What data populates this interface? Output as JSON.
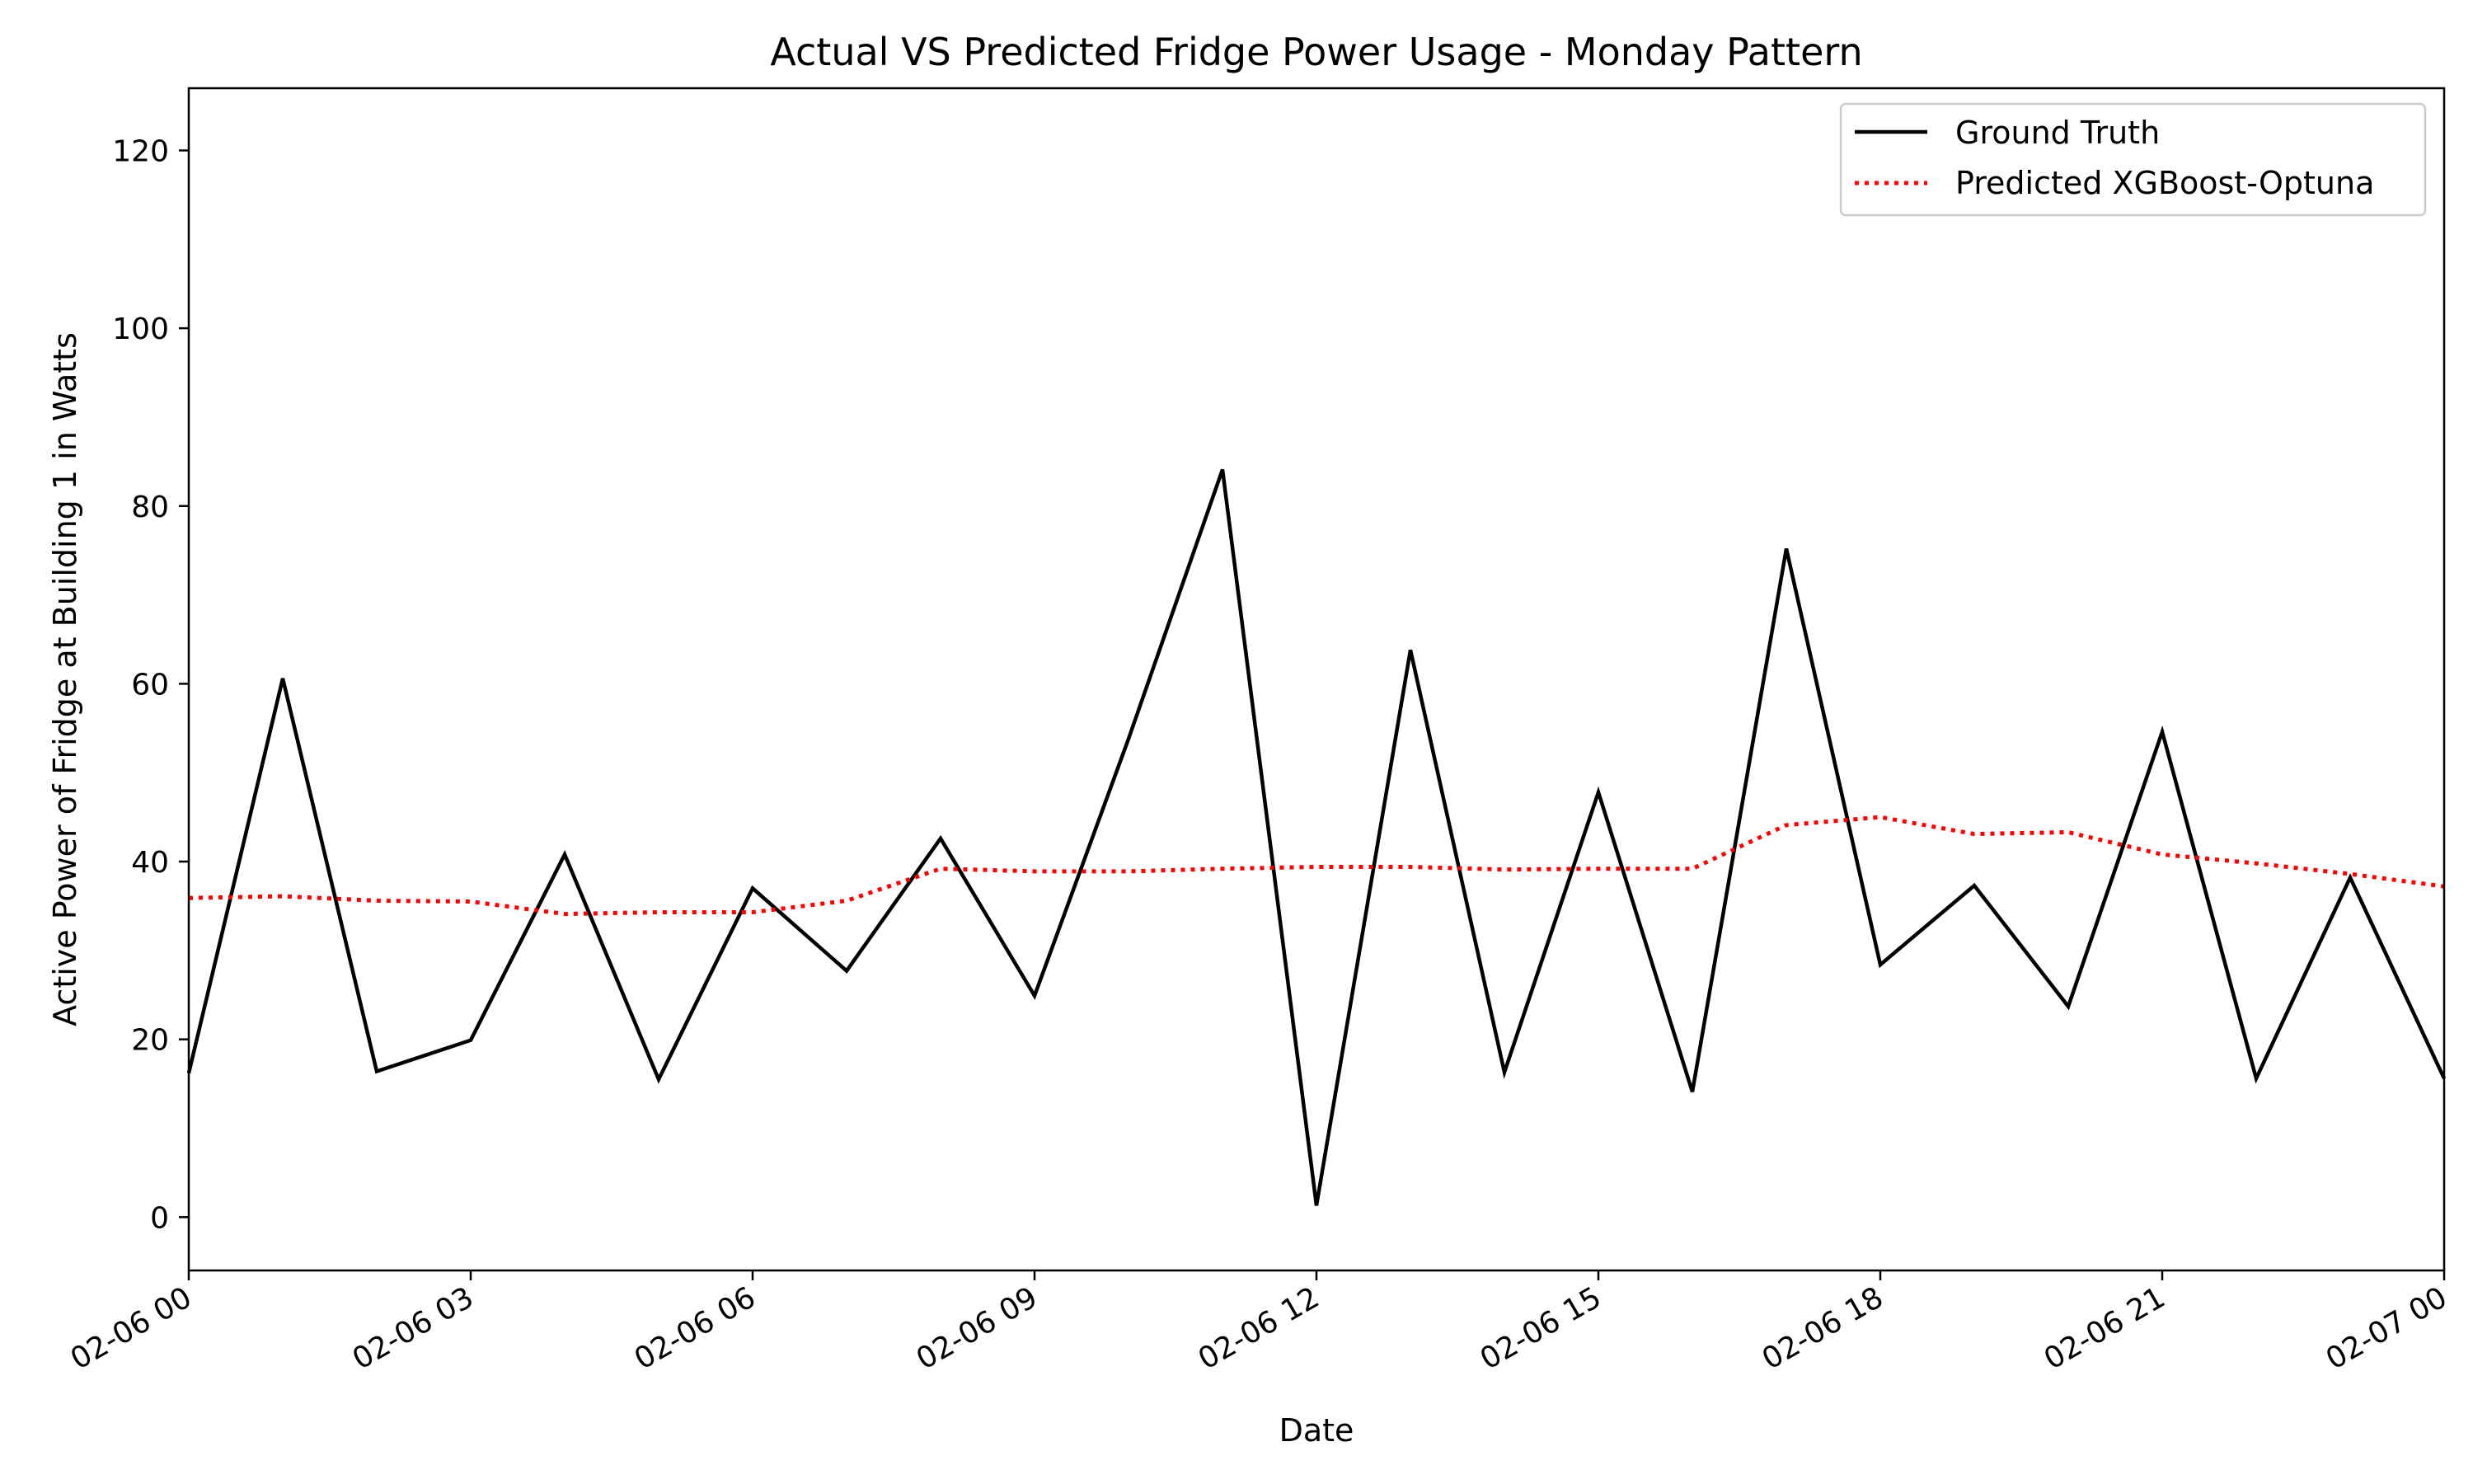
{
  "chart_data": {
    "type": "line",
    "title": "Actual VS Predicted Fridge Power Usage - Monday Pattern",
    "xlabel": "Date",
    "ylabel": "Active Power of Fridge at Building 1 in Watts",
    "x": [
      "02-06 00",
      "02-06 01",
      "02-06 02",
      "02-06 03",
      "02-06 04",
      "02-06 05",
      "02-06 06",
      "02-06 07",
      "02-06 08",
      "02-06 09",
      "02-06 10",
      "02-06 11",
      "02-06 12",
      "02-06 13",
      "02-06 14",
      "02-06 15",
      "02-06 16",
      "02-06 17",
      "02-06 18",
      "02-06 19",
      "02-06 20",
      "02-06 21",
      "02-06 22",
      "02-06 23",
      "02-07 00"
    ],
    "xticks": [
      "02-06 00",
      "02-06 03",
      "02-06 06",
      "02-06 09",
      "02-06 12",
      "02-06 15",
      "02-06 18",
      "02-06 21",
      "02-07 00"
    ],
    "yticks": [
      0,
      20,
      40,
      60,
      80,
      100,
      120
    ],
    "xlim": [
      "02-06 00",
      "02-07 00"
    ],
    "ylim": [
      -6,
      127
    ],
    "grid": false,
    "legend_position": "top-right",
    "series": [
      {
        "name": "Ground Truth",
        "color": "#000000",
        "style": "solid",
        "values": [
          16.2,
          60.6,
          16.4,
          19.9,
          40.8,
          15.5,
          37.0,
          27.7,
          42.6,
          24.9,
          53.8,
          84.1,
          1.3,
          63.8,
          16.3,
          47.8,
          14.1,
          75.2,
          28.4,
          37.3,
          23.7,
          54.6,
          15.6,
          38.2,
          15.6
        ]
      },
      {
        "name": "Predicted XGBoost-Optuna",
        "color": "#ff0000",
        "style": "dotted",
        "values": [
          35.9,
          36.1,
          35.6,
          35.5,
          34.1,
          34.3,
          34.3,
          35.6,
          39.2,
          38.9,
          38.9,
          39.2,
          39.4,
          39.4,
          39.1,
          39.2,
          39.2,
          44.1,
          45.0,
          43.1,
          43.3,
          40.8,
          39.8,
          38.6,
          37.2
        ]
      }
    ]
  }
}
